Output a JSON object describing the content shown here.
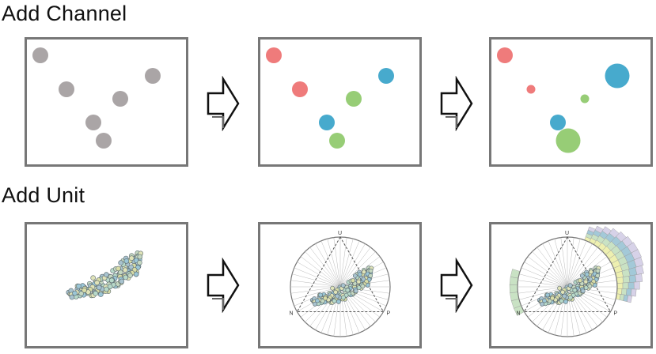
{
  "headings": {
    "channel": "Add Channel",
    "unit": "Add Unit"
  },
  "colors": {
    "gray": "#aaa5a6",
    "red": "#ef7b7b",
    "blue": "#47aacd",
    "green": "#97cd76",
    "border": "#777777"
  },
  "channel_stages": [
    {
      "name": "position-only",
      "dots": [
        {
          "c": "gray",
          "v": 1
        },
        {
          "c": "gray",
          "v": 1
        },
        {
          "c": "gray",
          "v": 1
        },
        {
          "c": "gray",
          "v": 1
        },
        {
          "c": "gray",
          "v": 1
        },
        {
          "c": "gray",
          "v": 1
        }
      ]
    },
    {
      "name": "add-color",
      "dots": [
        {
          "c": "red",
          "v": 1
        },
        {
          "c": "red",
          "v": 1
        },
        {
          "c": "blue",
          "v": 1
        },
        {
          "c": "green",
          "v": 1
        },
        {
          "c": "blue",
          "v": 1
        },
        {
          "c": "green",
          "v": 1
        }
      ]
    },
    {
      "name": "add-size",
      "dots": [
        {
          "c": "red",
          "v": 1
        },
        {
          "c": "red",
          "v": 0.3
        },
        {
          "c": "blue",
          "v": 2.4
        },
        {
          "c": "green",
          "v": 0.3
        },
        {
          "c": "blue",
          "v": 1
        },
        {
          "c": "green",
          "v": 2.4
        }
      ]
    }
  ],
  "ternary": {
    "vertices": {
      "top": "U",
      "left": "N",
      "right": "P"
    }
  },
  "icons": {
    "arrow": "arrow-right-icon"
  }
}
